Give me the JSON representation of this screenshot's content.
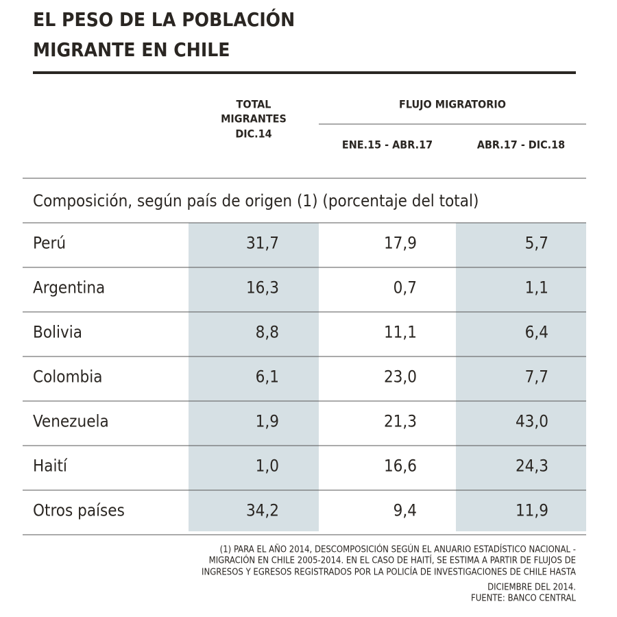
{
  "header": {
    "title_lines": [
      "EL PESO DE LA POBLACIÓN",
      "MIGRANTE EN CHILE"
    ]
  },
  "table": {
    "total_header": [
      "TOTAL",
      "MIGRANTES",
      "DIC.14"
    ],
    "group_header": "FLUJO MIGRATORIO",
    "sub_headers": [
      "ENE.15 - ABR.17",
      "ABR.17 - DIC.18"
    ],
    "section": "Composición, según país de origen (1) (porcentaje del total)",
    "rows": [
      [
        "Perú",
        "31,7",
        "17,9",
        "5,7"
      ],
      [
        "Argentina",
        "16,3",
        "0,7",
        "1,1"
      ],
      [
        "Bolivia",
        "8,8",
        "11,1",
        "6,4"
      ],
      [
        "Colombia",
        "6,1",
        "23,0",
        "7,7"
      ],
      [
        "Venezuela",
        "1,9",
        "21,3",
        "43,0"
      ],
      [
        "Haití",
        "1,0",
        "16,6",
        "24,3"
      ],
      [
        "Otros países",
        "34,2",
        "9,4",
        "11,9"
      ]
    ]
  },
  "footnote": {
    "lines": [
      "(1) PARA EL AÑO 2014, DESCOMPOSICIÓN SEGÚN EL ANUARIO ESTADÍSTICO NACIONAL -",
      "MIGRACIÓN EN CHILE 2005-2014. EN EL CASO DE HAITÍ, SE ESTIMA A PARTIR DE FLUJOS DE",
      "INGRESOS Y EGRESOS REGISTRADOS POR LA POLICÍA DE INVESTIGACIONES DE CHILE HASTA",
      "DICIEMBRE DEL 2014.",
      "FUENTE: BANCO CENTRAL"
    ]
  }
}
